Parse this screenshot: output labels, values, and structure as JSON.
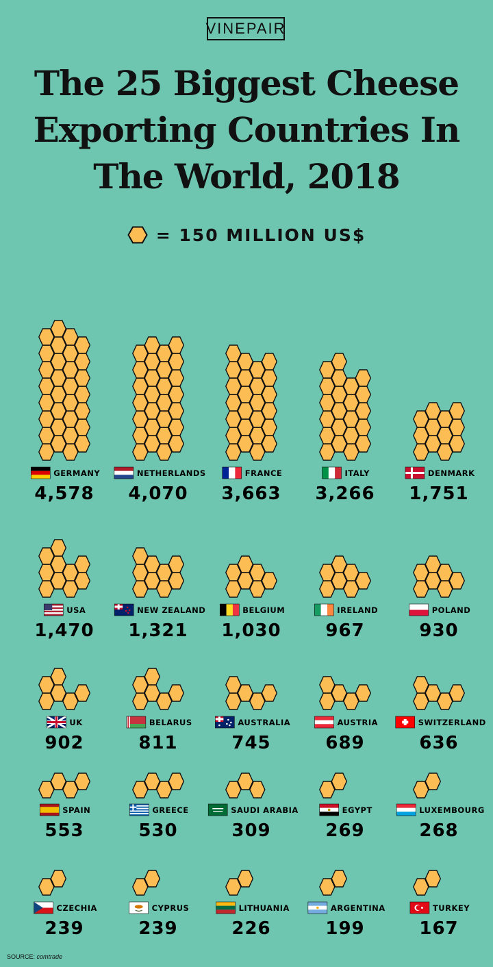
{
  "brand": {
    "logo_text": "VINEPAIR"
  },
  "title": "The 25 Biggest Cheese Exporting Countries In The World, 2018",
  "legend": {
    "text": "= 150 MILLION US$",
    "icon": "hexagon-icon",
    "color": "#fdbd55"
  },
  "source": {
    "label": "SOURCE:",
    "text": "comtrade"
  },
  "colors": {
    "background": "#6ec6b0",
    "hex_fill": "#fdbd55",
    "hex_stroke": "#111111"
  },
  "chart_data": {
    "type": "pictograph",
    "title": "The 25 Biggest Cheese Exporting Countries In The World, 2018",
    "unit_value": 150,
    "unit_label": "= 150 MILLION US$",
    "categories": [
      "GERMANY",
      "NETHERLANDS",
      "FRANCE",
      "ITALY",
      "DENMARK",
      "USA",
      "NEW ZEALAND",
      "BELGIUM",
      "IRELAND",
      "POLAND",
      "UK",
      "BELARUS",
      "AUSTRALIA",
      "AUSTRIA",
      "SWITZERLAND",
      "SPAIN",
      "GREECE",
      "SAUDI ARABIA",
      "EGYPT",
      "LUXEMBOURG",
      "CZECHIA",
      "CYPRUS",
      "LITHUANIA",
      "ARGENTINA",
      "TURKEY"
    ],
    "values": [
      4578,
      4070,
      3663,
      3266,
      1751,
      1470,
      1321,
      1030,
      967,
      930,
      902,
      811,
      745,
      689,
      636,
      553,
      530,
      309,
      269,
      268,
      239,
      239,
      226,
      199,
      167
    ],
    "value_labels": [
      "4,578",
      "4,070",
      "3,663",
      "3,266",
      "1,751",
      "1,470",
      "1,321",
      "1,030",
      "967",
      "930",
      "902",
      "811",
      "745",
      "689",
      "636",
      "553",
      "530",
      "309",
      "269",
      "268",
      "239",
      "239",
      "226",
      "199",
      "167"
    ],
    "flags": [
      "germany-flag",
      "netherlands-flag",
      "france-flag",
      "italy-flag",
      "denmark-flag",
      "usa-flag",
      "new-zealand-flag",
      "belgium-flag",
      "ireland-flag",
      "poland-flag",
      "uk-flag",
      "belarus-flag",
      "australia-flag",
      "austria-flag",
      "switzerland-flag",
      "spain-flag",
      "greece-flag",
      "saudi-arabia-flag",
      "egypt-flag",
      "luxembourg-flag",
      "czechia-flag",
      "cyprus-flag",
      "lithuania-flag",
      "argentina-flag",
      "turkey-flag"
    ]
  }
}
